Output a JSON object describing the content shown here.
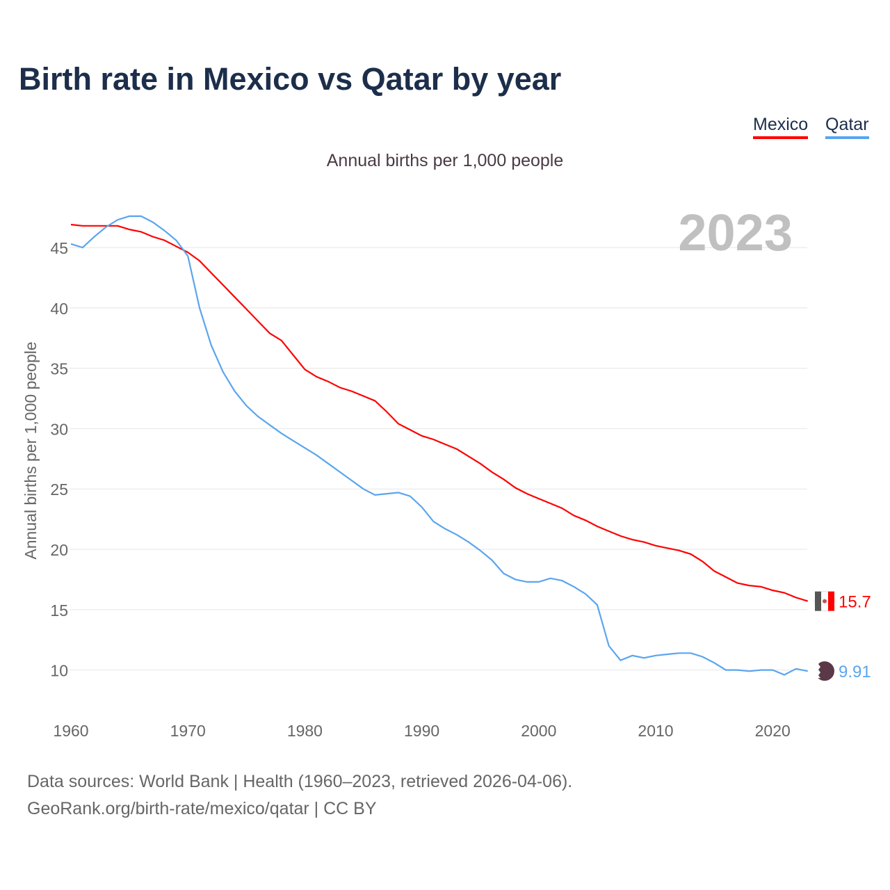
{
  "title": "Birth rate in Mexico vs Qatar by year",
  "subtitle": "Annual births per 1,000 people",
  "footer": {
    "line1": "Data sources: World Bank | Health (1960–2023, retrieved 2026-04-06).",
    "line2": "GeoRank.org/birth-rate/mexico/qatar | CC BY"
  },
  "chart_data": {
    "type": "line",
    "title": "Birth rate in Mexico vs Qatar by year",
    "ylabel": "Annual births per 1,000 people",
    "xlabel": "",
    "year_label": "2023",
    "xlim": [
      1960,
      2023
    ],
    "ylim": [
      7,
      48
    ],
    "xticks": [
      1960,
      1970,
      1980,
      1990,
      2000,
      2010,
      2020
    ],
    "yticks": [
      10,
      15,
      20,
      25,
      30,
      35,
      40,
      45
    ],
    "grid": true,
    "legend": "top-right",
    "x_start": 1960,
    "series": [
      {
        "name": "Mexico",
        "color": "#ff0000",
        "end_label": "15.7",
        "values": [
          46.9,
          46.8,
          46.8,
          46.8,
          46.8,
          46.5,
          46.3,
          45.9,
          45.6,
          45.1,
          44.6,
          43.9,
          42.9,
          41.9,
          40.9,
          39.9,
          38.9,
          37.9,
          37.3,
          36.1,
          34.9,
          34.3,
          33.9,
          33.4,
          33.1,
          32.7,
          32.3,
          31.4,
          30.4,
          29.9,
          29.4,
          29.1,
          28.7,
          28.3,
          27.7,
          27.1,
          26.4,
          25.8,
          25.1,
          24.6,
          24.2,
          23.8,
          23.4,
          22.8,
          22.4,
          21.9,
          21.5,
          21.1,
          20.8,
          20.6,
          20.3,
          20.1,
          19.9,
          19.6,
          19.0,
          18.2,
          17.7,
          17.2,
          17.0,
          16.9,
          16.6,
          16.4,
          16.0,
          15.7
        ]
      },
      {
        "name": "Qatar",
        "color": "#5aa5ee",
        "end_label": "9.91",
        "values": [
          45.3,
          45.0,
          45.9,
          46.7,
          47.3,
          47.6,
          47.6,
          47.1,
          46.4,
          45.6,
          44.3,
          40.0,
          36.9,
          34.7,
          33.1,
          31.9,
          31.0,
          30.3,
          29.6,
          29.0,
          28.4,
          27.8,
          27.1,
          26.4,
          25.7,
          25.0,
          24.5,
          24.6,
          24.7,
          24.4,
          23.5,
          22.3,
          21.7,
          21.2,
          20.6,
          19.9,
          19.1,
          18.0,
          17.5,
          17.3,
          17.3,
          17.6,
          17.4,
          16.9,
          16.3,
          15.4,
          12.0,
          10.8,
          11.2,
          11.0,
          11.2,
          11.3,
          11.4,
          11.4,
          11.1,
          10.6,
          10.0,
          10.0,
          9.9,
          10.0,
          10.0,
          9.6,
          10.1,
          9.91
        ]
      }
    ]
  }
}
